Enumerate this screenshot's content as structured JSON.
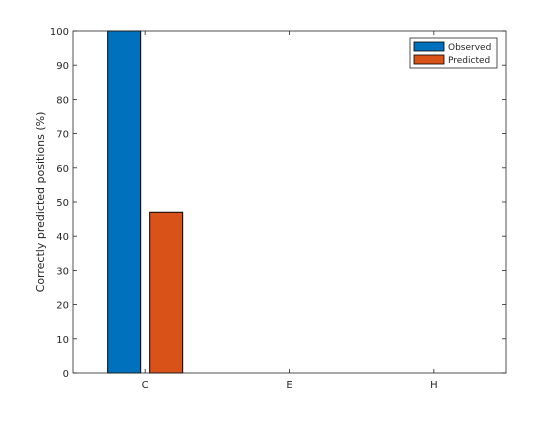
{
  "chart_data": {
    "type": "bar",
    "categories": [
      "C",
      "E",
      "H"
    ],
    "series": [
      {
        "name": "Observed",
        "values": [
          100,
          0,
          0
        ],
        "color": "#0072BD"
      },
      {
        "name": "Predicted",
        "values": [
          47,
          0,
          0
        ],
        "color": "#D95319"
      }
    ],
    "title": "",
    "xlabel": "",
    "ylabel": "Correctly predicted positions (%)",
    "ylim": [
      0,
      100
    ],
    "yticks": [
      0,
      10,
      20,
      30,
      40,
      50,
      60,
      70,
      80,
      90,
      100
    ],
    "legend_position": "top-right",
    "grid": false
  }
}
